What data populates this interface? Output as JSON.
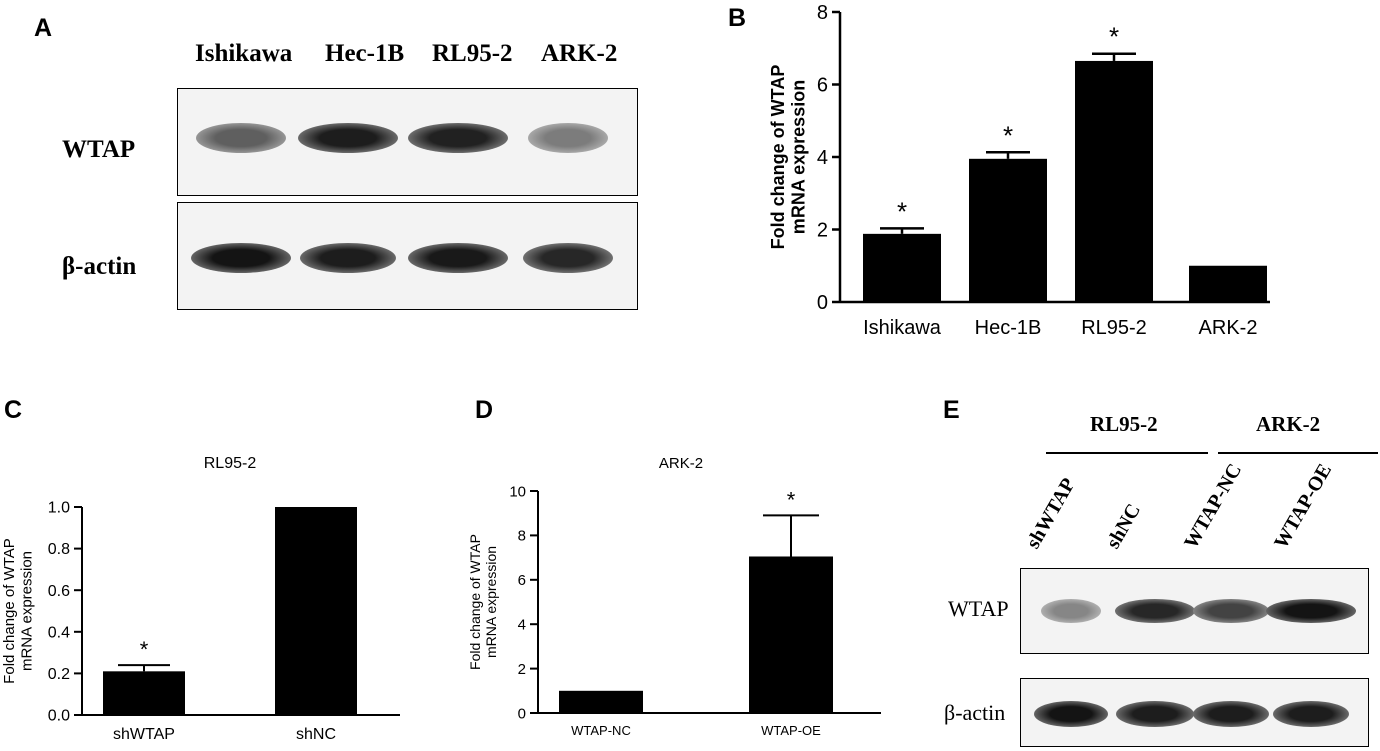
{
  "panels": {
    "A": {
      "letter": "A",
      "lanes": [
        "Ishikawa",
        "Hec-1B",
        "RL95-2",
        "ARK-2"
      ],
      "rows": [
        "WTAP",
        "β-actin"
      ],
      "wtap_intensity": [
        0.55,
        0.9,
        0.88,
        0.4
      ],
      "actin_intensity": [
        0.95,
        0.9,
        0.92,
        0.85
      ]
    },
    "B": {
      "letter": "B"
    },
    "C": {
      "letter": "C"
    },
    "D": {
      "letter": "D"
    },
    "E": {
      "letter": "E",
      "groups": [
        "RL95-2",
        "ARK-2"
      ],
      "lanes": [
        "shWTAP",
        "shNC",
        "WTAP-NC",
        "WTAP-OE"
      ],
      "rows": [
        "WTAP",
        "β-actin"
      ],
      "wtap_intensity": [
        0.35,
        0.85,
        0.7,
        0.95
      ],
      "actin_intensity": [
        0.95,
        0.9,
        0.9,
        0.9
      ]
    }
  },
  "chart_data": [
    {
      "id": "B",
      "type": "bar",
      "title": "",
      "xlabel": "",
      "ylabel": "Fold change of WTAP mRNA expression",
      "categories": [
        "Ishikawa",
        "Hec-1B",
        "RL95-2",
        "ARK-2"
      ],
      "values": [
        1.88,
        3.95,
        6.65,
        1.0
      ],
      "errors": [
        0.15,
        0.18,
        0.2,
        0
      ],
      "significance": [
        "*",
        "*",
        "*",
        ""
      ],
      "ylim": [
        0,
        8
      ],
      "yticks": [
        0,
        2,
        4,
        6,
        8
      ],
      "bar_color": "#000000"
    },
    {
      "id": "C",
      "type": "bar",
      "title": "RL95-2",
      "xlabel": "",
      "ylabel": "Fold change of WTAP mRNA expression",
      "categories": [
        "shWTAP",
        "shNC"
      ],
      "values": [
        0.21,
        1.0
      ],
      "errors": [
        0.03,
        0
      ],
      "significance": [
        "*",
        ""
      ],
      "ylim": [
        0,
        1.0
      ],
      "yticks": [
        "0.0",
        "0.2",
        "0.4",
        "0.6",
        "0.8",
        "1.0"
      ],
      "bar_color": "#000000"
    },
    {
      "id": "D",
      "type": "bar",
      "title": "ARK-2",
      "xlabel": "",
      "ylabel": "Fold change of WTAP mRNA expression",
      "categories": [
        "WTAP-NC",
        "WTAP-OE"
      ],
      "values": [
        1.0,
        7.05
      ],
      "errors": [
        0,
        1.85
      ],
      "significance": [
        "",
        "*"
      ],
      "ylim": [
        0,
        10
      ],
      "yticks": [
        0,
        2,
        4,
        6,
        8,
        10
      ],
      "bar_color": "#000000"
    }
  ]
}
